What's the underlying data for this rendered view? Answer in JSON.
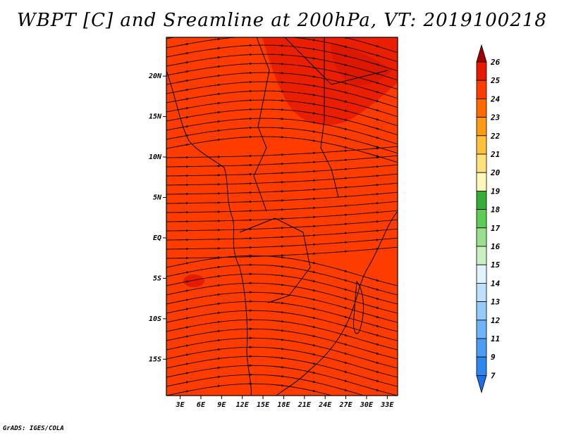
{
  "title": "WBPT [C] and Sreamline at 200hPa, VT: 2019100218",
  "credit": "GrADS: IGES/COLA",
  "chart_data": {
    "type": "heatmap",
    "variable": "WBPT [C]",
    "overlay": "streamlines",
    "level": "200hPa",
    "valid_time": "2019100218",
    "x_ticks": [
      "3E",
      "6E",
      "9E",
      "12E",
      "15E",
      "18E",
      "21E",
      "24E",
      "27E",
      "30E",
      "33E"
    ],
    "y_ticks": [
      "20N",
      "15N",
      "10N",
      "5N",
      "EQ",
      "5S",
      "10S",
      "15S"
    ],
    "xlim": [
      1,
      34.5
    ],
    "ylim": [
      -19.5,
      24.8
    ],
    "colorbar": {
      "labels": [
        "7",
        "9",
        "11",
        "12",
        "13",
        "14",
        "15",
        "16",
        "17",
        "18",
        "19",
        "20",
        "21",
        "22",
        "23",
        "24",
        "25",
        "26"
      ],
      "colors": [
        "#1e6ee6",
        "#2e86ee",
        "#4a9df2",
        "#6eb4f6",
        "#95cbf8",
        "#bde0fb",
        "#e2f3fd",
        "#c9f0c0",
        "#98e08c",
        "#5ccc56",
        "#36ad3a",
        "#fff6b8",
        "#ffe07a",
        "#ffc13d",
        "#ff9a14",
        "#ff6a00",
        "#ff3c00",
        "#e61a00",
        "#b40000"
      ],
      "extend_low_color": "#1e6ee6",
      "extend_high_color": "#a00000"
    },
    "field_colors": {
      "background": "#ff3c00",
      "warm_patch": "#e61a00"
    }
  }
}
